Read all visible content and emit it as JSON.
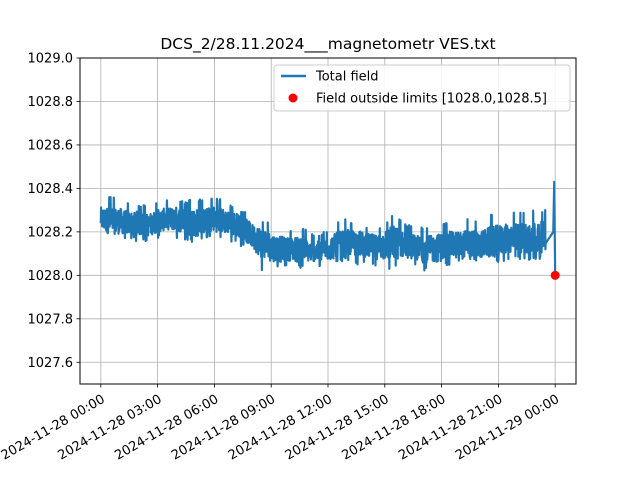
{
  "chart_data": {
    "type": "line",
    "title": "DCS_2/28.11.2024___magnetometr VES.txt",
    "xlabel": "",
    "ylabel": "",
    "ylim": [
      1027.5,
      1029.0
    ],
    "xlim_hours": [
      -1.1,
      25.1
    ],
    "grid": true,
    "legend_position": "top-right",
    "y_ticks": [
      1027.6,
      1027.8,
      1028.0,
      1028.2,
      1028.4,
      1028.6,
      1028.8,
      1029.0
    ],
    "y_tick_labels": [
      "1027.6",
      "1027.8",
      "1028.0",
      "1028.2",
      "1028.4",
      "1028.6",
      "1028.8",
      "1029.0"
    ],
    "x_ticks_hours": [
      0,
      3,
      6,
      9,
      12,
      15,
      18,
      21,
      24
    ],
    "x_tick_labels": [
      "2024-11-28 00:00",
      "2024-11-28 03:00",
      "2024-11-28 06:00",
      "2024-11-28 09:00",
      "2024-11-28 12:00",
      "2024-11-28 15:00",
      "2024-11-28 18:00",
      "2024-11-28 21:00",
      "2024-11-29 00:00"
    ],
    "series": [
      {
        "name": "Total field",
        "type": "line",
        "color": "#1f77b4",
        "x_hours": [
          0,
          0.5,
          1,
          1.5,
          2,
          2.5,
          3,
          3.5,
          4,
          4.5,
          5,
          5.5,
          6,
          6.5,
          7,
          7.5,
          8,
          8.5,
          9,
          9.5,
          10,
          10.5,
          11,
          11.5,
          12,
          12.5,
          13,
          13.5,
          14,
          14.5,
          15,
          15.5,
          16,
          16.5,
          17,
          17.5,
          18,
          18.5,
          19,
          19.5,
          20,
          20.5,
          21,
          21.5,
          22,
          22.5,
          23,
          23.5,
          23.9,
          23.95,
          24.0
        ],
        "y_center": [
          1028.26,
          1028.25,
          1028.25,
          1028.24,
          1028.24,
          1028.23,
          1028.25,
          1028.26,
          1028.26,
          1028.25,
          1028.24,
          1028.25,
          1028.26,
          1028.25,
          1028.24,
          1028.22,
          1028.18,
          1028.15,
          1028.13,
          1028.12,
          1028.12,
          1028.12,
          1028.11,
          1028.11,
          1028.12,
          1028.14,
          1028.15,
          1028.15,
          1028.14,
          1028.13,
          1028.14,
          1028.15,
          1028.14,
          1028.13,
          1028.12,
          1028.12,
          1028.13,
          1028.14,
          1028.14,
          1028.15,
          1028.14,
          1028.15,
          1028.16,
          1028.17,
          1028.17,
          1028.17,
          1028.17,
          1028.18,
          1028.2,
          1028.43,
          1028.0
        ],
        "y_max": [
          1028.35,
          1028.37,
          1028.35,
          1028.34,
          1028.33,
          1028.32,
          1028.34,
          1028.35,
          1028.35,
          1028.34,
          1028.36,
          1028.34,
          1028.37,
          1028.35,
          1028.32,
          1028.3,
          1028.27,
          1028.25,
          1028.24,
          1028.22,
          1028.21,
          1028.23,
          1028.2,
          1028.19,
          1028.21,
          1028.25,
          1028.26,
          1028.24,
          1028.23,
          1028.22,
          1028.24,
          1028.3,
          1028.24,
          1028.23,
          1028.22,
          1028.23,
          1028.25,
          1028.25,
          1028.26,
          1028.27,
          1028.25,
          1028.28,
          1028.29,
          1028.28,
          1028.3,
          1028.29,
          1028.31,
          1028.3,
          1028.32,
          1028.43,
          1028.0
        ],
        "y_min": [
          1028.18,
          1028.17,
          1028.16,
          1028.17,
          1028.15,
          1028.16,
          1028.17,
          1028.19,
          1028.17,
          1028.16,
          1028.15,
          1028.16,
          1028.18,
          1028.17,
          1028.15,
          1028.13,
          1028.09,
          1028.02,
          1028.03,
          1028.03,
          1028.04,
          1028.03,
          1028.05,
          1028.04,
          1028.04,
          1028.06,
          1028.07,
          1028.05,
          1028.05,
          1028.04,
          1028.01,
          1028.04,
          1028.06,
          1028.05,
          1028.02,
          1028.03,
          1028.04,
          1028.05,
          1028.06,
          1028.07,
          1028.06,
          1028.05,
          1028.06,
          1028.07,
          1028.08,
          1028.06,
          1028.07,
          1028.08,
          1028.1,
          1028.3,
          1028.0
        ]
      },
      {
        "name": "Field outside limits [1028.0,1028.5]",
        "type": "scatter",
        "color": "#ff0000",
        "points": [
          {
            "x_hours": 24.0,
            "y": 1028.0
          }
        ]
      }
    ]
  }
}
